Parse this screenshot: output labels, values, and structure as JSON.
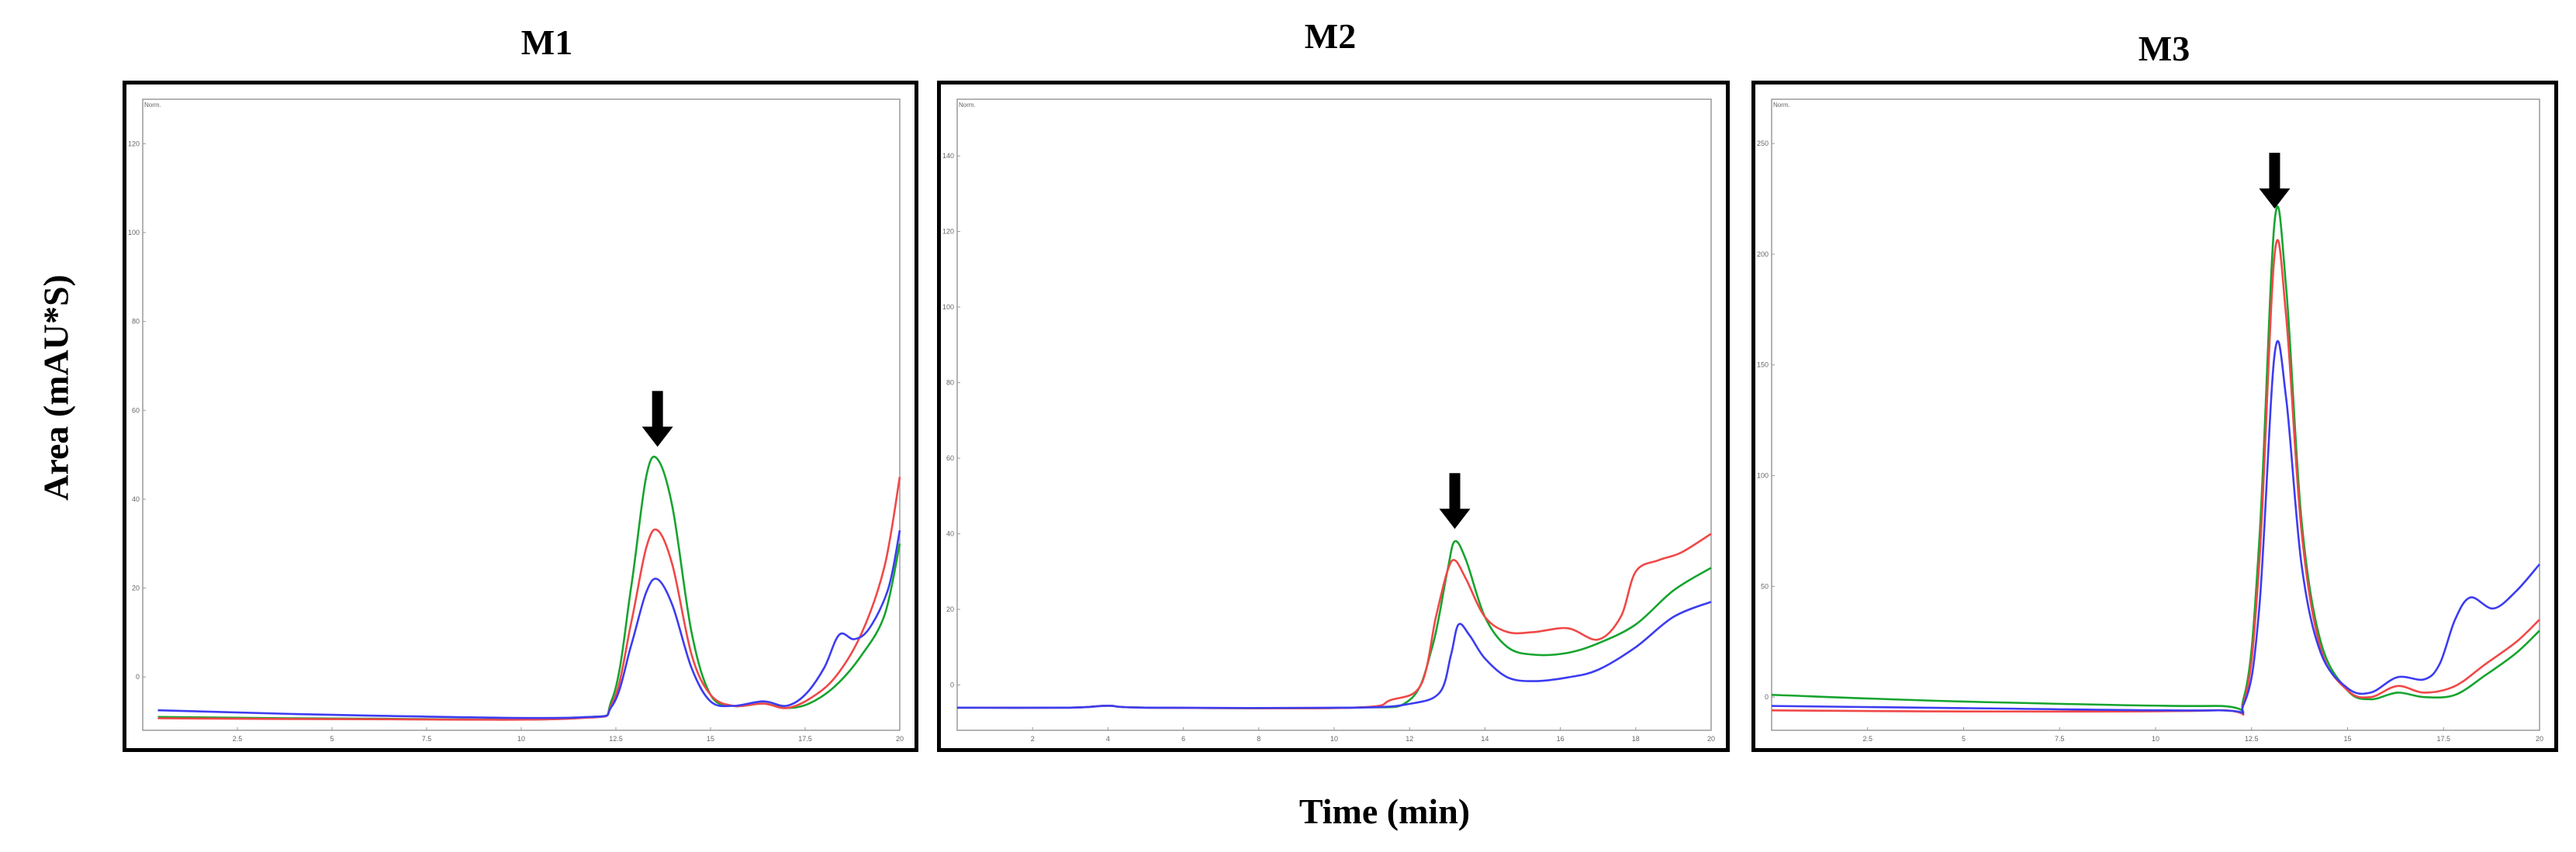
{
  "figure": {
    "ylabel": "Area (mAU*S)",
    "xlabel": "Time (min)"
  },
  "colors": {
    "series1": "#16a42e",
    "series2": "#f04848",
    "series3": "#3c3cf2",
    "arrow": "#000000"
  },
  "chart_data": [
    {
      "type": "line",
      "title": "M1",
      "unit_label": "Norm.",
      "xlim": [
        0,
        20
      ],
      "ylim": [
        -12,
        130
      ],
      "xticks": [
        2.5,
        5,
        7.5,
        10,
        12.5,
        15,
        17.5,
        20
      ],
      "xtick_labels": [
        "2.5",
        "5",
        "7.5",
        "10",
        "12.5",
        "15",
        "17.5",
        "20"
      ],
      "yticks": [
        0,
        20,
        40,
        60,
        80,
        100,
        120
      ],
      "ytick_labels": [
        "0",
        "20",
        "40",
        "60",
        "80",
        "100",
        "120"
      ],
      "arrow_x": 13.6,
      "series": [
        {
          "name": "green",
          "color": "#16a42e",
          "points": [
            [
              0.4,
              -9
            ],
            [
              6,
              -9.4
            ],
            [
              11.5,
              -9.2
            ],
            [
              12.4,
              -5
            ],
            [
              12.9,
              20
            ],
            [
              13.3,
              45
            ],
            [
              13.6,
              49
            ],
            [
              14,
              38
            ],
            [
              14.5,
              10
            ],
            [
              15,
              -4
            ],
            [
              15.6,
              -6.5
            ],
            [
              16.4,
              -6
            ],
            [
              17,
              -7
            ],
            [
              17.6,
              -6
            ],
            [
              18.3,
              -2
            ],
            [
              19,
              5
            ],
            [
              19.6,
              14
            ],
            [
              20,
              30
            ]
          ]
        },
        {
          "name": "red",
          "color": "#f04848",
          "points": [
            [
              0.4,
              -9.3
            ],
            [
              6,
              -9.5
            ],
            [
              11.5,
              -9.3
            ],
            [
              12.4,
              -6
            ],
            [
              12.9,
              12
            ],
            [
              13.3,
              29
            ],
            [
              13.6,
              33
            ],
            [
              14,
              25
            ],
            [
              14.5,
              5
            ],
            [
              15,
              -4
            ],
            [
              15.6,
              -6.5
            ],
            [
              16.4,
              -6
            ],
            [
              17,
              -7
            ],
            [
              17.6,
              -5
            ],
            [
              18.3,
              0
            ],
            [
              19,
              10
            ],
            [
              19.6,
              25
            ],
            [
              20,
              45
            ]
          ]
        },
        {
          "name": "blue",
          "color": "#3c3cf2",
          "points": [
            [
              0.4,
              -7.5
            ],
            [
              6,
              -8.7
            ],
            [
              11.5,
              -9.1
            ],
            [
              12.4,
              -6.5
            ],
            [
              12.9,
              7
            ],
            [
              13.3,
              19
            ],
            [
              13.6,
              22
            ],
            [
              14,
              16
            ],
            [
              14.5,
              2
            ],
            [
              15,
              -5.5
            ],
            [
              15.6,
              -6.5
            ],
            [
              16.4,
              -5.5
            ],
            [
              17,
              -6.5
            ],
            [
              17.5,
              -4
            ],
            [
              18,
              2
            ],
            [
              18.4,
              9.5
            ],
            [
              18.8,
              8.5
            ],
            [
              19.2,
              11
            ],
            [
              19.7,
              20
            ],
            [
              20,
              33
            ]
          ]
        }
      ]
    },
    {
      "type": "line",
      "title": "M2",
      "unit_label": "Norm.",
      "xlim": [
        0,
        20
      ],
      "ylim": [
        -12,
        155
      ],
      "xticks": [
        2,
        4,
        6,
        8,
        10,
        12,
        14,
        16,
        18,
        20
      ],
      "xtick_labels": [
        "2",
        "4",
        "6",
        "8",
        "10",
        "12",
        "14",
        "16",
        "18",
        "20"
      ],
      "yticks": [
        0,
        20,
        40,
        60,
        80,
        100,
        120,
        140
      ],
      "ytick_labels": [
        "0",
        "20",
        "40",
        "60",
        "80",
        "100",
        "120",
        "140"
      ],
      "arrow_x": 13.2,
      "series": [
        {
          "name": "green",
          "color": "#16a42e",
          "points": [
            [
              0,
              -6
            ],
            [
              3,
              -6
            ],
            [
              4,
              -5.5
            ],
            [
              5,
              -6
            ],
            [
              10.5,
              -6
            ],
            [
              12,
              -4
            ],
            [
              12.6,
              10
            ],
            [
              13,
              30
            ],
            [
              13.2,
              38
            ],
            [
              13.5,
              33
            ],
            [
              14,
              18
            ],
            [
              14.6,
              10
            ],
            [
              15.3,
              8
            ],
            [
              16.2,
              8.5
            ],
            [
              17,
              11
            ],
            [
              18,
              16
            ],
            [
              19,
              25
            ],
            [
              20,
              31
            ]
          ]
        },
        {
          "name": "red",
          "color": "#f04848",
          "points": [
            [
              0,
              -6
            ],
            [
              3,
              -6
            ],
            [
              4,
              -5.5
            ],
            [
              5,
              -6
            ],
            [
              10.5,
              -6
            ],
            [
              11.5,
              -4
            ],
            [
              12.3,
              0
            ],
            [
              12.7,
              18
            ],
            [
              13,
              30
            ],
            [
              13.2,
              33
            ],
            [
              13.5,
              28
            ],
            [
              14,
              18
            ],
            [
              14.6,
              14
            ],
            [
              15.3,
              14
            ],
            [
              16.2,
              15
            ],
            [
              17,
              12
            ],
            [
              17.6,
              18
            ],
            [
              18,
              30
            ],
            [
              18.6,
              33
            ],
            [
              19.2,
              35
            ],
            [
              20,
              40
            ]
          ]
        },
        {
          "name": "blue",
          "color": "#3c3cf2",
          "points": [
            [
              0,
              -6
            ],
            [
              3,
              -6
            ],
            [
              4,
              -5.5
            ],
            [
              5,
              -6
            ],
            [
              10.5,
              -6
            ],
            [
              12,
              -5
            ],
            [
              12.8,
              -2
            ],
            [
              13.1,
              8
            ],
            [
              13.3,
              16
            ],
            [
              13.6,
              13
            ],
            [
              14,
              7
            ],
            [
              14.6,
              2
            ],
            [
              15.3,
              1
            ],
            [
              16.2,
              2
            ],
            [
              17,
              4
            ],
            [
              18,
              10
            ],
            [
              19,
              18
            ],
            [
              20,
              22
            ]
          ]
        }
      ]
    },
    {
      "type": "line",
      "title": "M3",
      "unit_label": "Norm.",
      "xlim": [
        0,
        20
      ],
      "ylim": [
        -15,
        270
      ],
      "xticks": [
        2.5,
        5,
        7.5,
        10,
        12.5,
        15,
        17.5,
        20
      ],
      "xtick_labels": [
        "2.5",
        "5",
        "7.5",
        "10",
        "12.5",
        "15",
        "17.5",
        "20"
      ],
      "yticks": [
        0,
        50,
        100,
        150,
        200,
        250
      ],
      "ytick_labels": [
        "0",
        "50",
        "100",
        "150",
        "200",
        "250"
      ],
      "arrow_x": 13.1,
      "series": [
        {
          "name": "green",
          "color": "#16a42e",
          "points": [
            [
              0,
              1
            ],
            [
              5,
              -2
            ],
            [
              11.5,
              -4
            ],
            [
              12.3,
              0
            ],
            [
              12.7,
              70
            ],
            [
              13.1,
              215
            ],
            [
              13.4,
              185
            ],
            [
              13.8,
              80
            ],
            [
              14.3,
              25
            ],
            [
              15,
              3
            ],
            [
              15.6,
              -1
            ],
            [
              16.3,
              2
            ],
            [
              17,
              0
            ],
            [
              17.8,
              1
            ],
            [
              18.6,
              10
            ],
            [
              19.4,
              20
            ],
            [
              20,
              30
            ]
          ]
        },
        {
          "name": "red",
          "color": "#f04848",
          "points": [
            [
              0,
              -6
            ],
            [
              5,
              -6.5
            ],
            [
              11.5,
              -6
            ],
            [
              12.3,
              -2
            ],
            [
              12.7,
              60
            ],
            [
              13.1,
              200
            ],
            [
              13.4,
              172
            ],
            [
              13.8,
              75
            ],
            [
              14.3,
              22
            ],
            [
              15,
              3
            ],
            [
              15.6,
              0
            ],
            [
              16.3,
              5
            ],
            [
              17,
              2
            ],
            [
              17.8,
              5
            ],
            [
              18.6,
              15
            ],
            [
              19.4,
              25
            ],
            [
              20,
              35
            ]
          ]
        },
        {
          "name": "blue",
          "color": "#3c3cf2",
          "points": [
            [
              0,
              -4
            ],
            [
              5,
              -5
            ],
            [
              11.5,
              -6
            ],
            [
              12.3,
              -3
            ],
            [
              12.7,
              40
            ],
            [
              13.1,
              155
            ],
            [
              13.4,
              135
            ],
            [
              13.8,
              60
            ],
            [
              14.3,
              20
            ],
            [
              15,
              4
            ],
            [
              15.6,
              2
            ],
            [
              16.3,
              9
            ],
            [
              17,
              8
            ],
            [
              17.4,
              15
            ],
            [
              17.8,
              35
            ],
            [
              18.2,
              45
            ],
            [
              18.8,
              40
            ],
            [
              19.4,
              48
            ],
            [
              20,
              60
            ]
          ]
        }
      ]
    }
  ]
}
